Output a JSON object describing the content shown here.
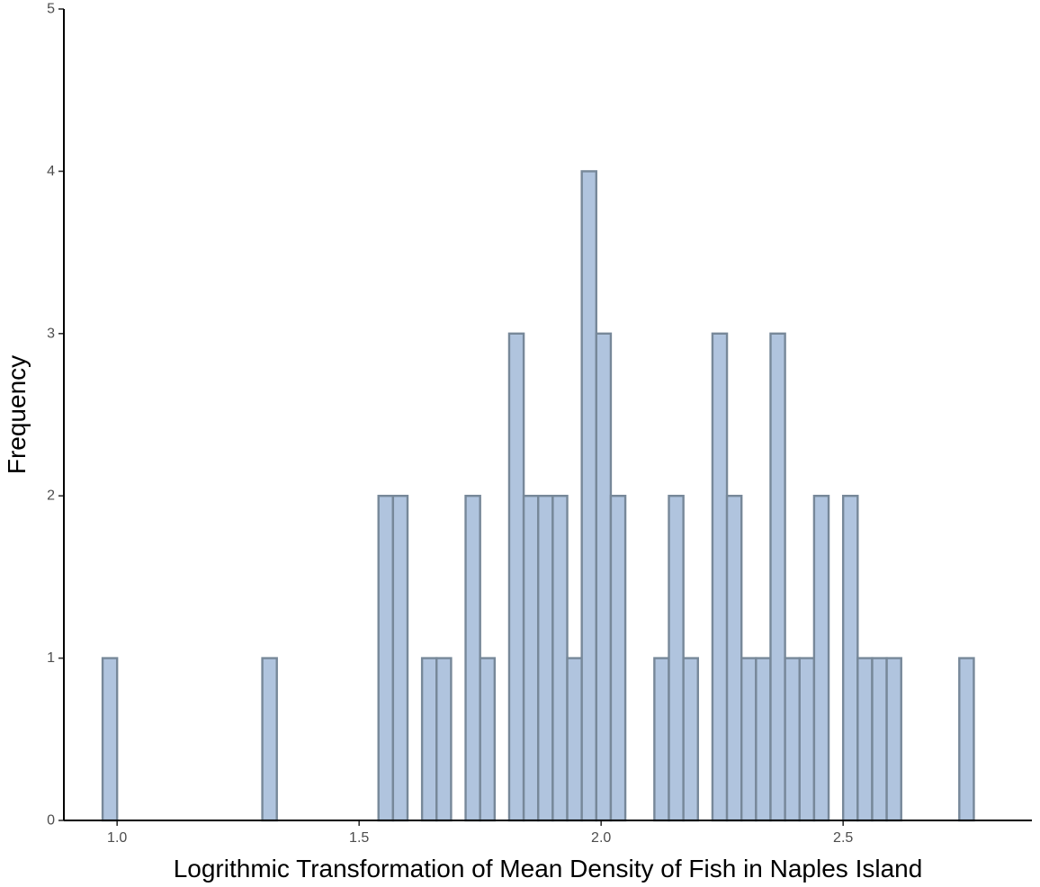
{
  "chart_data": {
    "type": "bar",
    "title": "",
    "xlabel": "Logrithmic Transformation of Mean Density of Fish in Naples Island",
    "ylabel": "Frequency",
    "xlim": [
      0.89,
      2.89
    ],
    "ylim": [
      0,
      5
    ],
    "bin_width": 0.03,
    "x_ticks": [
      {
        "value": 1.0,
        "label": "1.0"
      },
      {
        "value": 1.5,
        "label": "1.5"
      },
      {
        "value": 2.0,
        "label": "2.0"
      },
      {
        "value": 2.5,
        "label": "2.5"
      }
    ],
    "y_ticks": [
      {
        "value": 0,
        "label": "0"
      },
      {
        "value": 1,
        "label": "1"
      },
      {
        "value": 2,
        "label": "2"
      },
      {
        "value": 3,
        "label": "3"
      },
      {
        "value": 4,
        "label": "4"
      },
      {
        "value": 5,
        "label": "5"
      }
    ],
    "bins": [
      {
        "start": 0.97,
        "count": 1
      },
      {
        "start": 1.3,
        "count": 1
      },
      {
        "start": 1.54,
        "count": 2
      },
      {
        "start": 1.57,
        "count": 2
      },
      {
        "start": 1.63,
        "count": 1
      },
      {
        "start": 1.66,
        "count": 1
      },
      {
        "start": 1.72,
        "count": 2
      },
      {
        "start": 1.75,
        "count": 1
      },
      {
        "start": 1.81,
        "count": 3
      },
      {
        "start": 1.84,
        "count": 2
      },
      {
        "start": 1.87,
        "count": 2
      },
      {
        "start": 1.9,
        "count": 2
      },
      {
        "start": 1.93,
        "count": 1
      },
      {
        "start": 1.96,
        "count": 4
      },
      {
        "start": 1.99,
        "count": 3
      },
      {
        "start": 2.02,
        "count": 2
      },
      {
        "start": 2.11,
        "count": 1
      },
      {
        "start": 2.14,
        "count": 2
      },
      {
        "start": 2.17,
        "count": 1
      },
      {
        "start": 2.23,
        "count": 3
      },
      {
        "start": 2.26,
        "count": 2
      },
      {
        "start": 2.29,
        "count": 1
      },
      {
        "start": 2.32,
        "count": 1
      },
      {
        "start": 2.35,
        "count": 3
      },
      {
        "start": 2.38,
        "count": 1
      },
      {
        "start": 2.41,
        "count": 1
      },
      {
        "start": 2.44,
        "count": 2
      },
      {
        "start": 2.5,
        "count": 2
      },
      {
        "start": 2.53,
        "count": 1
      },
      {
        "start": 2.56,
        "count": 1
      },
      {
        "start": 2.59,
        "count": 1
      },
      {
        "start": 2.74,
        "count": 1
      }
    ],
    "grid": false,
    "legend": "none",
    "colors": {
      "bar_fill": "#b0c4de",
      "bar_stroke": "#778899",
      "axis": "#000000",
      "tick_label": "#4d4d4d"
    }
  }
}
